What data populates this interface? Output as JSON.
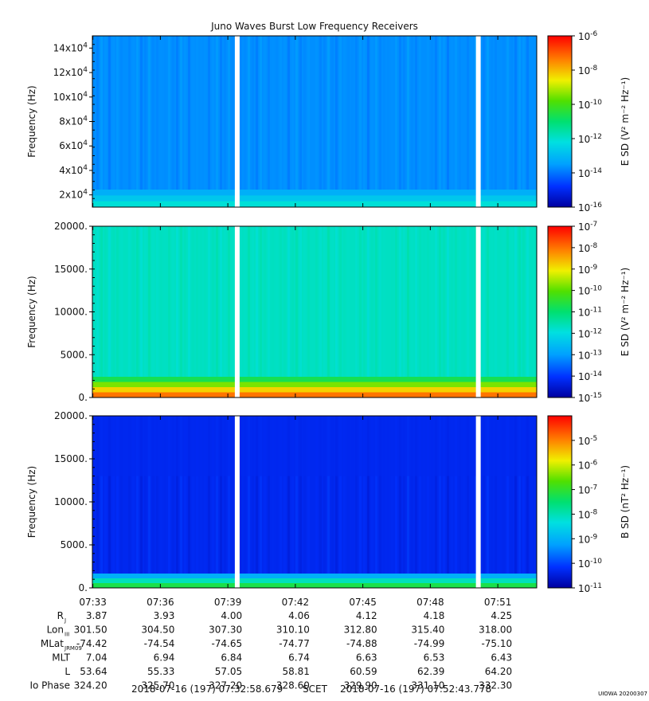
{
  "title": "Juno Waves Burst Low Frequency Receivers",
  "credit": "UIOWA 20200307",
  "colors": {
    "background": "#ffffff",
    "frame": "#000000",
    "gap": "#ffffff"
  },
  "chart_data": [
    {
      "type": "heatmap",
      "ylabel": "Frequency (Hz)",
      "ylim": [
        10000,
        150000
      ],
      "yticks": [
        {
          "value": 20000,
          "base": "2x10",
          "exp": "4"
        },
        {
          "value": 40000,
          "base": "4x10",
          "exp": "4"
        },
        {
          "value": 60000,
          "base": "6x10",
          "exp": "4"
        },
        {
          "value": 80000,
          "base": "8x10",
          "exp": "4"
        },
        {
          "value": 100000,
          "base": "10x10",
          "exp": "4"
        },
        {
          "value": 120000,
          "base": "12x10",
          "exp": "4"
        },
        {
          "value": 140000,
          "base": "14x10",
          "exp": "4"
        }
      ],
      "colorbar": {
        "label": "E SD (V² m⁻² Hz⁻¹)",
        "scale": "log",
        "range_exp": [
          -16,
          -6
        ],
        "ticks": [
          {
            "base": "10",
            "exp": "-6"
          },
          {
            "base": "10",
            "exp": "-8"
          },
          {
            "base": "10",
            "exp": "-10"
          },
          {
            "base": "10",
            "exp": "-12"
          },
          {
            "base": "10",
            "exp": "-14"
          },
          {
            "base": "10",
            "exp": "-16"
          }
        ]
      },
      "dominant_level_exp": -13.7
    },
    {
      "type": "heatmap",
      "ylabel": "Frequency (Hz)",
      "ylim": [
        0,
        20000
      ],
      "yticks": [
        "0.",
        "5000.",
        "10000.",
        "15000.",
        "20000."
      ],
      "colorbar": {
        "label": "E SD (V² m⁻² Hz⁻¹)",
        "scale": "log",
        "range_exp": [
          -15,
          -7
        ],
        "ticks": [
          {
            "base": "10",
            "exp": "-7"
          },
          {
            "base": "10",
            "exp": "-8"
          },
          {
            "base": "10",
            "exp": "-9"
          },
          {
            "base": "10",
            "exp": "-10"
          },
          {
            "base": "10",
            "exp": "-11"
          },
          {
            "base": "10",
            "exp": "-12"
          },
          {
            "base": "10",
            "exp": "-13"
          },
          {
            "base": "10",
            "exp": "-14"
          },
          {
            "base": "10",
            "exp": "-15"
          }
        ]
      },
      "dominant_level_exp": -11.7
    },
    {
      "type": "heatmap",
      "ylabel": "Frequency (Hz)",
      "ylim": [
        0,
        20000
      ],
      "yticks": [
        "0.",
        "5000.",
        "10000.",
        "15000.",
        "20000."
      ],
      "colorbar": {
        "label": "B SD (nT² Hz⁻¹)",
        "scale": "log",
        "range_exp": [
          -11,
          -4
        ],
        "ticks": [
          {
            "base": "10",
            "exp": "-5"
          },
          {
            "base": "10",
            "exp": "-6"
          },
          {
            "base": "10",
            "exp": "-7"
          },
          {
            "base": "10",
            "exp": "-8"
          },
          {
            "base": "10",
            "exp": "-9"
          },
          {
            "base": "10",
            "exp": "-10"
          },
          {
            "base": "10",
            "exp": "-11"
          }
        ]
      },
      "dominant_level_exp": -10.3
    }
  ],
  "time_axis": {
    "ticks": [
      "07:33",
      "07:36",
      "07:39",
      "07:42",
      "07:45",
      "07:48",
      "07:51"
    ],
    "data_gaps": [
      "07:39:25",
      "07:50:08"
    ]
  },
  "ephemeris": {
    "rows": [
      {
        "label": "R",
        "sub": "J",
        "values": [
          "3.87",
          "3.93",
          "4.00",
          "4.06",
          "4.12",
          "4.18",
          "4.25"
        ]
      },
      {
        "label": "Lon",
        "sub": "III",
        "values": [
          "301.50",
          "304.50",
          "307.30",
          "310.10",
          "312.80",
          "315.40",
          "318.00"
        ]
      },
      {
        "label": "MLat",
        "sub": "JRM09",
        "values": [
          "-74.42",
          "-74.54",
          "-74.65",
          "-74.77",
          "-74.88",
          "-74.99",
          "-75.10"
        ]
      },
      {
        "label": "MLT",
        "sub": "",
        "values": [
          "7.04",
          "6.94",
          "6.84",
          "6.74",
          "6.63",
          "6.53",
          "6.43"
        ]
      },
      {
        "label": "L",
        "sub": "",
        "values": [
          "53.64",
          "55.33",
          "57.05",
          "58.81",
          "60.59",
          "62.39",
          "64.20"
        ]
      },
      {
        "label": "Io Phase",
        "sub": "",
        "values": [
          "324.20",
          "325.70",
          "327.20",
          "328.60",
          "329.90",
          "331.10",
          "332.30"
        ]
      }
    ]
  },
  "footer": {
    "start": "2018-07-16 (197) 07:32:58.679",
    "frame": "SCET",
    "end": "2018-07-16 (197) 07:52:43.778"
  }
}
